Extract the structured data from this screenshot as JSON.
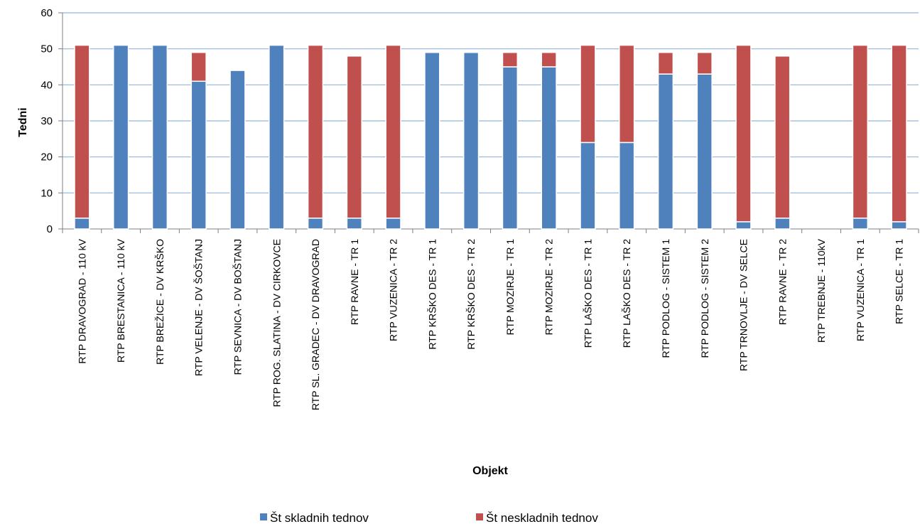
{
  "chart_data": {
    "type": "bar",
    "stacked": true,
    "title": "",
    "xlabel": "Objekt",
    "ylabel": "Tedni",
    "ylim": [
      0,
      60
    ],
    "yticks": [
      0,
      10,
      20,
      30,
      40,
      50,
      60
    ],
    "grid": true,
    "legend_position": "bottom",
    "categories": [
      "RTP DRAVOGRAD - 110 kV",
      "RTP BRESTANICA - 110 kV",
      "RTP BREŽICE - DV KRŠKO",
      "RTP VELENJE - DV ŠOŠTANJ",
      "RTP SEVNICA - DV BOŠTANJ",
      "RTP ROG. SLATINA - DV CIRKOVCE",
      "RTP SL. GRADEC - DV DRAVOGRAD",
      "RTP RAVNE - TR 1",
      "RTP VUZENICA - TR 2",
      "RTP KRŠKO DES - TR 1",
      "RTP KRŠKO DES - TR 2",
      "RTP MOZIRJE - TR 1",
      "RTP MOZIRJE - TR 2",
      "RTP LAŠKO DES - TR 1",
      "RTP LAŠKO DES - TR 2",
      "RTP PODLOG - SISTEM 1",
      "RTP PODLOG - SISTEM 2",
      "RTP TRNOVLJE - DV SELCE",
      "RTP RAVNE - TR 2",
      "RTP TREBNJE - 110kV",
      "RTP VUZENICA - TR 1",
      "RTP SELCE - TR 1"
    ],
    "series": [
      {
        "name": "Št skladnih tednov",
        "color": "#4F81BD",
        "values": [
          3,
          51,
          51,
          41,
          44,
          51,
          3,
          3,
          3,
          49,
          49,
          45,
          45,
          24,
          24,
          43,
          43,
          2,
          3,
          0,
          3,
          2
        ]
      },
      {
        "name": "Št neskladnih tednov",
        "color": "#C0504D",
        "values": [
          48,
          0,
          0,
          8,
          0,
          0,
          48,
          45,
          48,
          0,
          0,
          4,
          4,
          27,
          27,
          6,
          6,
          49,
          45,
          0,
          48,
          49
        ]
      }
    ],
    "colors": {
      "grid": "#95B3D7",
      "axis": "#7F7F7F",
      "text": "#000000"
    }
  }
}
